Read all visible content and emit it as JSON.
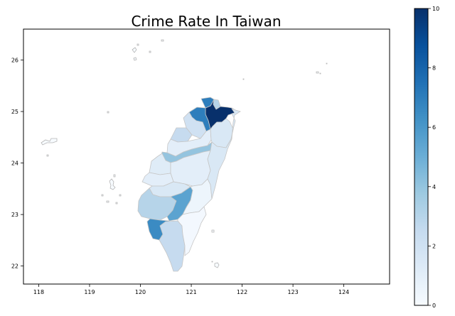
{
  "figure": {
    "title": "Crime Rate In Taiwan"
  },
  "colormap": {
    "name": "Blues",
    "low_color": "#f7fbff",
    "high_color": "#08306b",
    "stops": [
      "#f7fbff",
      "#deebf7",
      "#c6dbef",
      "#9ecae1",
      "#6baed6",
      "#4292c6",
      "#2171b5",
      "#08519c",
      "#08306b"
    ]
  },
  "colorbar": {
    "range": [
      0,
      10
    ],
    "ticks": [
      "0",
      "2",
      "4",
      "6",
      "8",
      "10"
    ]
  },
  "map_axes": {
    "x_ticks": [
      "118",
      "119",
      "120",
      "121",
      "122",
      "123",
      "124"
    ],
    "y_ticks": [
      "22",
      "23",
      "24",
      "25",
      "26"
    ],
    "xlim": [
      117.7,
      124.9
    ],
    "ylim": [
      21.65,
      26.6
    ]
  },
  "chart_data": {
    "type": "choropleth",
    "title": "Crime Rate In Taiwan",
    "colorbar_range": [
      0,
      10
    ],
    "colorbar_ticks": [
      0,
      2,
      4,
      6,
      8,
      10
    ],
    "x_ticks": [
      118,
      119,
      120,
      121,
      122,
      123,
      124
    ],
    "y_ticks": [
      22,
      23,
      24,
      25,
      26
    ],
    "xlim": [
      117.7,
      124.9
    ],
    "ylim": [
      21.65,
      26.6
    ],
    "colormap": "Blues",
    "grid": false,
    "regions": [
      {
        "id": "r01",
        "value": 10.0
      },
      {
        "id": "r02",
        "value": 3.0
      },
      {
        "id": "r03",
        "value": 7.0
      },
      {
        "id": "r04",
        "value": 7.0
      },
      {
        "id": "r05",
        "value": 2.0
      },
      {
        "id": "r06",
        "value": 2.5
      },
      {
        "id": "r07",
        "value": 1.0
      },
      {
        "id": "r08",
        "value": 4.0
      },
      {
        "id": "r09",
        "value": 1.5
      },
      {
        "id": "r10",
        "value": 1.2
      },
      {
        "id": "r11",
        "value": 1.0
      },
      {
        "id": "r12",
        "value": 1.0
      },
      {
        "id": "r13",
        "value": 1.5
      },
      {
        "id": "r14",
        "value": 3.0
      },
      {
        "id": "r15",
        "value": 5.5
      },
      {
        "id": "r16",
        "value": 6.5
      },
      {
        "id": "r17",
        "value": 2.5
      },
      {
        "id": "r18",
        "value": 0.5
      },
      {
        "id": "r19",
        "value": 0.2
      },
      {
        "id": "r20",
        "value": 1.5
      }
    ],
    "islands": [
      {
        "id": "matsu",
        "value": 0
      },
      {
        "id": "kinmen",
        "value": 0
      },
      {
        "id": "penghu",
        "value": 0
      },
      {
        "id": "green-island",
        "value": 0
      },
      {
        "id": "orchid-island",
        "value": 0
      },
      {
        "id": "diaoyutai",
        "value": 0
      }
    ]
  }
}
